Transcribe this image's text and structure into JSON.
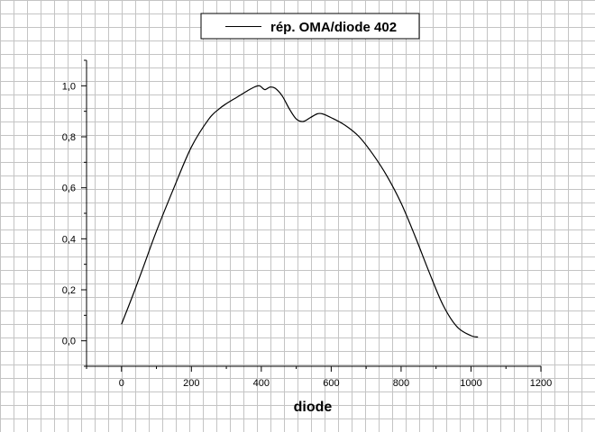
{
  "chart_data": {
    "type": "line",
    "title": "",
    "xlabel": "diode",
    "ylabel": "",
    "xlim": [
      -100,
      1200
    ],
    "ylim": [
      -0.1,
      1.1
    ],
    "xticks": [
      0,
      200,
      400,
      600,
      800,
      1000,
      1200
    ],
    "xtick_labels": [
      "0",
      "200",
      "400",
      "600",
      "800",
      "1000",
      "1200"
    ],
    "yticks": [
      0.0,
      0.2,
      0.4,
      0.6,
      0.8,
      1.0
    ],
    "ytick_labels": [
      "0,0",
      "0,2",
      "0,4",
      "0,6",
      "0,8",
      "1,0"
    ],
    "grid": true,
    "legend_position": "top-center",
    "series": [
      {
        "name": "rép. OMA/diode 402",
        "color": "#000000",
        "x": [
          0,
          30,
          60,
          100,
          150,
          200,
          250,
          280,
          300,
          330,
          360,
          380,
          395,
          410,
          425,
          440,
          460,
          480,
          500,
          520,
          540,
          560,
          575,
          600,
          640,
          680,
          720,
          760,
          800,
          840,
          880,
          920,
          960,
          1000,
          1020
        ],
        "y": [
          0.065,
          0.17,
          0.28,
          0.43,
          0.6,
          0.76,
          0.87,
          0.91,
          0.93,
          0.955,
          0.98,
          0.995,
          1.0,
          0.985,
          0.995,
          0.99,
          0.96,
          0.91,
          0.87,
          0.86,
          0.875,
          0.89,
          0.89,
          0.875,
          0.845,
          0.8,
          0.73,
          0.645,
          0.54,
          0.41,
          0.27,
          0.14,
          0.055,
          0.02,
          0.015
        ]
      }
    ]
  }
}
